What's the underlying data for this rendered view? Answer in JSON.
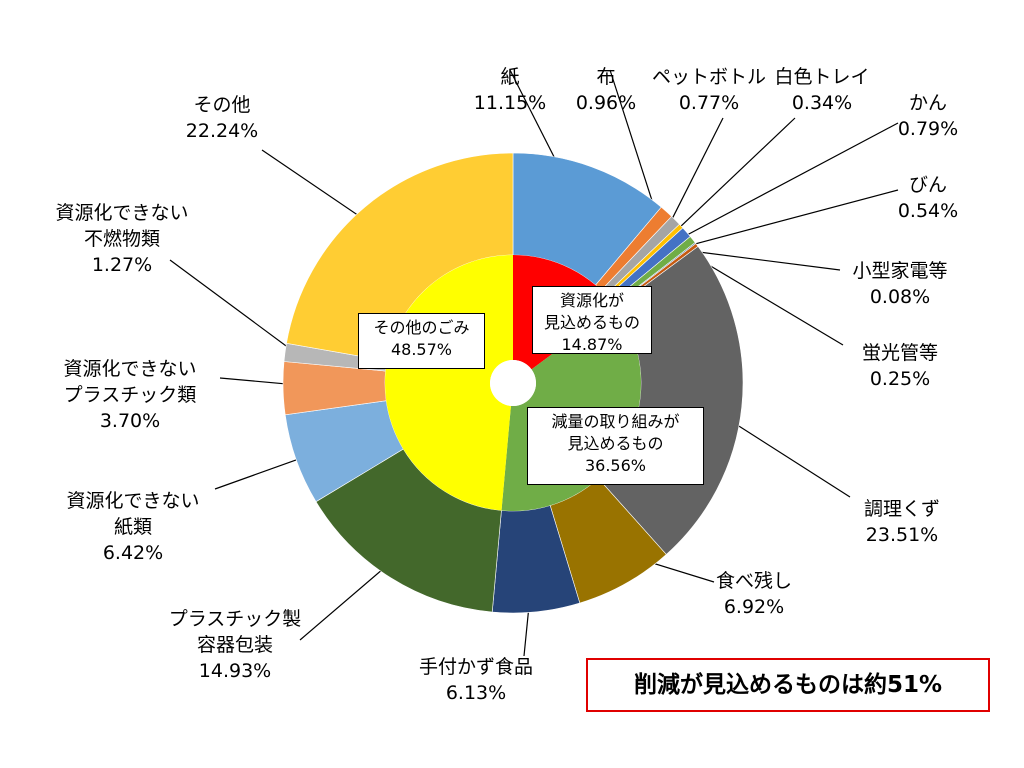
{
  "chart_data": {
    "type": "pie",
    "subtype": "nested-donut",
    "outer_ring": [
      {
        "name": "紙",
        "value": 11.15,
        "label": "11.15%",
        "color": "#5B9BD5"
      },
      {
        "name": "布",
        "value": 0.96,
        "label": "0.96%",
        "color": "#ED7D31"
      },
      {
        "name": "ペットボトル",
        "value": 0.77,
        "label": "0.77%",
        "color": "#A5A5A5"
      },
      {
        "name": "白色トレイ",
        "value": 0.34,
        "label": "0.34%",
        "color": "#FFC000"
      },
      {
        "name": "かん",
        "value": 0.79,
        "label": "0.79%",
        "color": "#4472C4"
      },
      {
        "name": "びん",
        "value": 0.54,
        "label": "0.54%",
        "color": "#70AD47"
      },
      {
        "name": "小型家電等",
        "value": 0.08,
        "label": "0.08%",
        "color": "#255E91"
      },
      {
        "name": "蛍光管等",
        "value": 0.25,
        "label": "0.25%",
        "color": "#C55A11"
      },
      {
        "name": "調理くず",
        "value": 23.51,
        "label": "23.51%",
        "color": "#636363"
      },
      {
        "name": "食べ残し",
        "value": 6.92,
        "label": "6.92%",
        "color": "#997300"
      },
      {
        "name": "手付かず食品",
        "value": 6.13,
        "label": "6.13%",
        "color": "#264478"
      },
      {
        "name": "プラスチック製容器包装",
        "value": 14.93,
        "label": "14.93%",
        "color": "#43682B"
      },
      {
        "name": "資源化できない紙類",
        "value": 6.42,
        "label": "6.42%",
        "color": "#7CAFDD"
      },
      {
        "name": "資源化できないプラスチック類",
        "value": 3.7,
        "label": "3.70%",
        "color": "#F1975A"
      },
      {
        "name": "資源化できない不燃物類",
        "value": 1.27,
        "label": "1.27%",
        "color": "#B7B7B7"
      },
      {
        "name": "その他",
        "value": 22.24,
        "label": "22.24%",
        "color": "#FFCD33"
      }
    ],
    "inner_ring": [
      {
        "name": "資源化が見込めるもの",
        "value": 14.87,
        "label": "14.87%",
        "color": "#FF0000"
      },
      {
        "name": "減量の取り組みが見込めるもの",
        "value": 36.56,
        "label": "36.56%",
        "color": "#70AD47"
      },
      {
        "name": "その他のごみ",
        "value": 48.57,
        "label": "48.57%",
        "color": "#FFFF00"
      }
    ]
  },
  "outer_labels": [
    {
      "lines": [
        "紙",
        "11.15%"
      ]
    },
    {
      "lines": [
        "布",
        "0.96%"
      ]
    },
    {
      "lines": [
        "ペットボトル",
        "0.77%"
      ]
    },
    {
      "lines": [
        "白色トレイ",
        "0.34%"
      ]
    },
    {
      "lines": [
        "かん",
        "0.79%"
      ]
    },
    {
      "lines": [
        "びん",
        "0.54%"
      ]
    },
    {
      "lines": [
        "小型家電等",
        "0.08%"
      ]
    },
    {
      "lines": [
        "蛍光管等",
        "0.25%"
      ]
    },
    {
      "lines": [
        "調理くず",
        "23.51%"
      ]
    },
    {
      "lines": [
        "食べ残し",
        "6.92%"
      ]
    },
    {
      "lines": [
        "手付かず食品",
        "6.13%"
      ]
    },
    {
      "lines": [
        "プラスチック製",
        "容器包装",
        "14.93%"
      ]
    },
    {
      "lines": [
        "資源化できない",
        "紙類",
        "6.42%"
      ]
    },
    {
      "lines": [
        "資源化できない",
        "プラスチック類",
        "3.70%"
      ]
    },
    {
      "lines": [
        "資源化できない",
        "不燃物類",
        "1.27%"
      ]
    },
    {
      "lines": [
        "その他",
        "22.24%"
      ]
    }
  ],
  "inner_labels": [
    {
      "lines": [
        "資源化が",
        "見込めるもの",
        "14.87%"
      ]
    },
    {
      "lines": [
        "減量の取り組みが",
        "見込めるもの",
        "36.56%"
      ]
    },
    {
      "lines": [
        "その他のごみ",
        "48.57%"
      ]
    }
  ],
  "summary": "削減が見込めるものは約51%"
}
